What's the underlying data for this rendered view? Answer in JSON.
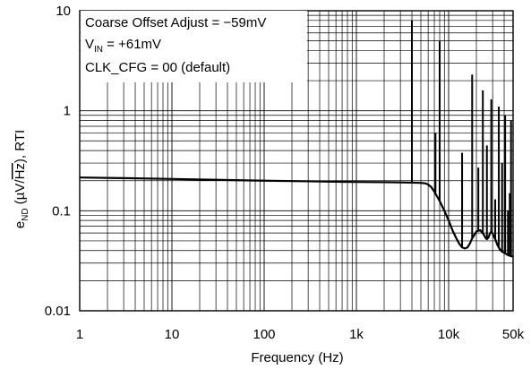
{
  "chart_data": {
    "type": "line",
    "title": "",
    "xlabel": "Frequency (Hz)",
    "ylabel": {
      "base": "e",
      "sub": "ND",
      "rest": " (µV/",
      "sqrt": "Hz",
      "tail": "), RTI"
    },
    "x_scale": "log",
    "y_scale": "log",
    "xlim": [
      1,
      50000
    ],
    "ylim": [
      0.01,
      10
    ],
    "grid": true,
    "x_ticks": [
      {
        "value": 1,
        "label": "1"
      },
      {
        "value": 10,
        "label": "10"
      },
      {
        "value": 100,
        "label": "100"
      },
      {
        "value": 1000,
        "label": "1k"
      },
      {
        "value": 10000,
        "label": "10k"
      },
      {
        "value": 50000,
        "label": "50k"
      }
    ],
    "y_ticks": [
      {
        "value": 0.01,
        "label": "0.01"
      },
      {
        "value": 0.1,
        "label": "0.1"
      },
      {
        "value": 1,
        "label": "1"
      },
      {
        "value": 10,
        "label": "10"
      }
    ],
    "annotations": [
      {
        "id": "offset",
        "text": "Coarse Offset Adjust = −59mV"
      },
      {
        "id": "vin",
        "base": "V",
        "sub": "IN",
        "rest": " = +61mV"
      },
      {
        "id": "clk",
        "text": "CLK_CFG = 00 (default)"
      }
    ],
    "legend": "top-left",
    "series": [
      {
        "x": [
          1,
          3,
          10,
          30,
          100,
          300,
          1000,
          2000,
          3000,
          4000,
          5000,
          5600,
          6000,
          6500,
          7000,
          8000,
          9000,
          10000,
          11000,
          12000,
          13000,
          14000,
          15000,
          16000,
          17000,
          18000,
          20000,
          22000,
          24000,
          25000,
          26000,
          27000,
          28000,
          29000,
          30000,
          32000,
          34000,
          36000,
          38000,
          40000,
          42000,
          44000,
          46000,
          48000,
          50000
        ],
        "y": [
          0.215,
          0.212,
          0.208,
          0.204,
          0.2,
          0.197,
          0.194,
          0.193,
          0.192,
          0.191,
          0.19,
          0.188,
          0.183,
          0.172,
          0.155,
          0.125,
          0.1,
          0.08,
          0.064,
          0.054,
          0.047,
          0.043,
          0.042,
          0.043,
          0.047,
          0.053,
          0.062,
          0.064,
          0.058,
          0.054,
          0.052,
          0.054,
          0.059,
          0.062,
          0.059,
          0.052,
          0.045,
          0.041,
          0.039,
          0.038,
          0.037,
          0.036,
          0.0355,
          0.035,
          0.035
        ]
      }
    ],
    "spurs": [
      {
        "x": 4000,
        "base": 0.19,
        "peak": 8.0
      },
      {
        "x": 7200,
        "base": 0.15,
        "peak": 0.6
      },
      {
        "x": 8000,
        "base": 0.125,
        "peak": 5.0
      },
      {
        "x": 14000,
        "base": 0.043,
        "peak": 0.38
      },
      {
        "x": 18000,
        "base": 0.053,
        "peak": 2.3
      },
      {
        "x": 21000,
        "base": 0.063,
        "peak": 0.27
      },
      {
        "x": 23500,
        "base": 0.06,
        "peak": 1.6
      },
      {
        "x": 26000,
        "base": 0.052,
        "peak": 0.45
      },
      {
        "x": 29000,
        "base": 0.062,
        "peak": 1.3
      },
      {
        "x": 32000,
        "base": 0.052,
        "peak": 0.13
      },
      {
        "x": 35000,
        "base": 0.043,
        "peak": 1.1
      },
      {
        "x": 38000,
        "base": 0.039,
        "peak": 0.3
      },
      {
        "x": 41000,
        "base": 0.037,
        "peak": 0.9
      },
      {
        "x": 44000,
        "base": 0.036,
        "peak": 0.1
      },
      {
        "x": 46000,
        "base": 0.0355,
        "peak": 0.15
      },
      {
        "x": 47500,
        "base": 0.035,
        "peak": 0.8
      }
    ]
  }
}
